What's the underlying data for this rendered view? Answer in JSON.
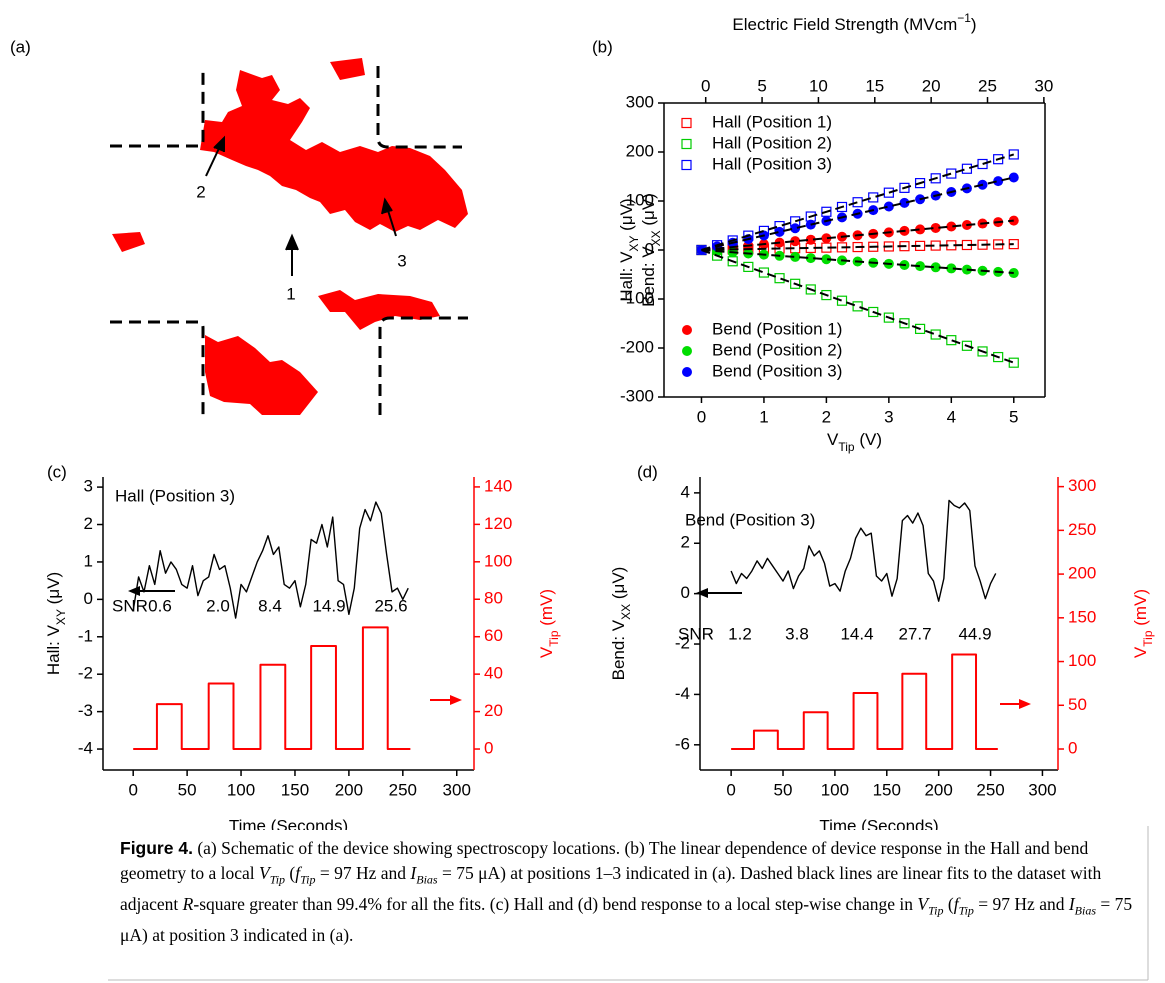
{
  "schematic": {
    "panel_label": "(a)",
    "labels": [
      "1",
      "2",
      "3"
    ]
  },
  "chart_data": [
    {
      "type": "scatter",
      "panel_label": "(b)",
      "x": [
        0,
        0.25,
        0.5,
        0.75,
        1,
        1.25,
        1.5,
        1.75,
        2,
        2.25,
        2.5,
        2.75,
        3,
        3.25,
        3.5,
        3.75,
        4,
        4.25,
        4.5,
        4.75,
        5
      ],
      "xlim": [
        -0.6,
        5.5
      ],
      "xticks": [
        0,
        1,
        2,
        3,
        4,
        5
      ],
      "x2lim": [
        -3.7,
        30.1
      ],
      "x2ticks": [
        0,
        5,
        10,
        15,
        20,
        25,
        30
      ],
      "ylim": [
        -300,
        300
      ],
      "yticks": [
        -300,
        -200,
        -100,
        0,
        100,
        200,
        300
      ],
      "xlabel": [
        "V",
        "Tip",
        " (V)"
      ],
      "x2label": [
        "Electric Field Strength (MVcm",
        "−1",
        ")"
      ],
      "ylabel": [
        [
          "Hall: V",
          "XY",
          " (μV)"
        ],
        [
          "Bend: V",
          "XX",
          " (μV)"
        ]
      ],
      "fit_lines": true,
      "series": [
        {
          "name": "Hall (Position 1)",
          "color": "#ff0000",
          "marker": "square",
          "values": [
            0,
            0.6,
            1.2,
            1.8,
            2.4,
            3,
            3.6,
            4.2,
            4.8,
            5.4,
            6,
            6.6,
            7.2,
            7.8,
            8.4,
            9,
            9.6,
            10.2,
            10.8,
            11.4,
            12
          ]
        },
        {
          "name": "Hall (Position 2)",
          "color": "#00cc00",
          "marker": "square",
          "values": [
            0,
            -11.5,
            -23,
            -34.5,
            -46,
            -57.5,
            -69,
            -80.5,
            -92,
            -103.5,
            -115,
            -126.5,
            -138,
            -149.5,
            -161,
            -172.5,
            -184,
            -195.5,
            -207,
            -218.5,
            -230
          ]
        },
        {
          "name": "Hall (Position 3)",
          "color": "#0000ff",
          "marker": "square",
          "values": [
            0,
            9.8,
            19.5,
            29.3,
            39,
            48.8,
            58.5,
            68.3,
            78,
            87.8,
            97.5,
            107.3,
            117,
            126.8,
            136.5,
            146.3,
            156,
            165.8,
            175.5,
            185.3,
            195
          ]
        },
        {
          "name": "Bend (Position 1)",
          "color": "#ff0000",
          "marker": "circle",
          "values": [
            0,
            3,
            6,
            9,
            12,
            15,
            18,
            21,
            24,
            27,
            30,
            33,
            36,
            39,
            42,
            45,
            48,
            51,
            54,
            57,
            60
          ]
        },
        {
          "name": "Bend (Position 2)",
          "color": "#00dd00",
          "marker": "circle",
          "values": [
            0,
            -2.4,
            -4.7,
            -7.1,
            -9.4,
            -11.8,
            -14.1,
            -16.5,
            -18.8,
            -21.2,
            -23.5,
            -25.9,
            -28.2,
            -30.6,
            -32.9,
            -35.3,
            -37.6,
            -40,
            -42.3,
            -44.7,
            -47
          ]
        },
        {
          "name": "Bend (Position 3)",
          "color": "#0000ff",
          "marker": "circle",
          "values": [
            0,
            7.4,
            14.8,
            22.2,
            29.6,
            37,
            44.4,
            51.8,
            59.2,
            66.6,
            74,
            81.4,
            88.8,
            96.2,
            103.6,
            111,
            118.4,
            125.8,
            133.2,
            140.6,
            148
          ]
        }
      ]
    },
    {
      "type": "line",
      "panel_label": "(c)",
      "title": "Hall (Position 3)",
      "x": [
        0,
        5,
        10,
        15,
        20,
        25,
        30,
        35,
        40,
        45,
        50,
        55,
        60,
        65,
        70,
        75,
        80,
        85,
        90,
        95,
        100,
        105,
        110,
        115,
        120,
        125,
        130,
        135,
        140,
        145,
        150,
        155,
        160,
        165,
        170,
        175,
        180,
        185,
        190,
        195,
        200,
        205,
        210,
        215,
        220,
        225,
        230,
        235,
        240,
        245,
        250,
        255
      ],
      "xlim": [
        -28,
        316
      ],
      "xticks": [
        0,
        50,
        100,
        150,
        200,
        250,
        300
      ],
      "ylim": [
        -4.56,
        3.27
      ],
      "yticks": [
        -4,
        -3,
        -2,
        -1,
        0,
        1,
        2,
        3
      ],
      "y2lim": [
        -11.2,
        145.3
      ],
      "y2ticks": [
        0,
        20,
        40,
        60,
        80,
        100,
        120,
        140
      ],
      "xlabel": "Time (Seconds)",
      "ylabel": [
        "Hall: V",
        "XY",
        " (μV)"
      ],
      "y2label": [
        "V",
        "Tip",
        " (mV)"
      ],
      "y2color": "#ff0000",
      "snr_label": "SNR",
      "snr_values": [
        "0.6",
        "2.0",
        "8.4",
        "14.9",
        "25.6"
      ],
      "series": [
        {
          "color": "#000000",
          "values": [
            -0.3,
            0.6,
            0.2,
            0.9,
            0.4,
            1.3,
            0.7,
            1.0,
            0.8,
            0.4,
            0.3,
            0.9,
            0.1,
            0.5,
            0.6,
            1.2,
            0.8,
            0.9,
            0.3,
            -0.5,
            0.4,
            0.2,
            0.6,
            1.0,
            1.3,
            1.7,
            1.2,
            1.4,
            0.4,
            0.3,
            0.5,
            -0.2,
            0.4,
            1.6,
            1.5,
            2.0,
            1.4,
            2.2,
            0.5,
            0.4,
            -0.4,
            0.3,
            1.9,
            2.4,
            2.1,
            2.6,
            2.3,
            1.2,
            0.2,
            0.3,
            0.0,
            0.3
          ]
        },
        {
          "color": "#ff0000",
          "axis": "y2",
          "x": [
            0,
            22,
            22,
            45,
            45,
            70,
            70,
            93,
            93,
            118,
            118,
            141,
            141,
            165,
            165,
            188,
            188,
            213,
            213,
            236,
            236,
            257
          ],
          "values": [
            0,
            0,
            24,
            24,
            0,
            0,
            35,
            35,
            0,
            0,
            45,
            45,
            0,
            0,
            55,
            55,
            0,
            0,
            65,
            65,
            0,
            0
          ]
        }
      ]
    },
    {
      "type": "line",
      "panel_label": "(d)",
      "title": "Bend (Position 3)",
      "x": [
        0,
        5,
        10,
        15,
        20,
        25,
        30,
        35,
        40,
        45,
        50,
        55,
        60,
        65,
        70,
        75,
        80,
        85,
        90,
        95,
        100,
        105,
        110,
        115,
        120,
        125,
        130,
        135,
        140,
        145,
        150,
        155,
        160,
        165,
        170,
        175,
        180,
        185,
        190,
        195,
        200,
        205,
        210,
        215,
        220,
        225,
        230,
        235,
        240,
        245,
        250,
        255
      ],
      "xlim": [
        -30,
        315
      ],
      "xticks": [
        0,
        50,
        100,
        150,
        200,
        250,
        300
      ],
      "ylim": [
        -7,
        4.63
      ],
      "yticks": [
        -6,
        -4,
        -2,
        0,
        2,
        4
      ],
      "y2lim": [
        -24,
        311
      ],
      "y2ticks": [
        0,
        50,
        100,
        150,
        200,
        250,
        300
      ],
      "xlabel": "Time (Seconds)",
      "ylabel": [
        "Bend: V",
        "XX",
        " (μV)"
      ],
      "y2label": [
        "V",
        "Tip",
        " (mV)"
      ],
      "y2color": "#ff0000",
      "snr_label": "SNR",
      "snr_values": [
        "1.2",
        "3.8",
        "14.4",
        "27.7",
        "44.9"
      ],
      "series": [
        {
          "color": "#000000",
          "values": [
            0.9,
            0.4,
            0.8,
            0.6,
            0.9,
            1.3,
            1.0,
            1.4,
            1.1,
            0.8,
            0.5,
            0.9,
            0.2,
            0.7,
            1.0,
            1.9,
            1.5,
            1.7,
            1.2,
            0.3,
            0.4,
            0.1,
            0.9,
            1.4,
            2.2,
            2.6,
            2.3,
            2.4,
            0.7,
            0.5,
            0.8,
            -0.1,
            0.6,
            2.9,
            3.1,
            2.8,
            3.2,
            2.7,
            0.8,
            0.5,
            -0.3,
            0.6,
            3.7,
            3.5,
            3.4,
            3.6,
            3.3,
            1.1,
            0.5,
            -0.2,
            0.4,
            0.8
          ]
        },
        {
          "color": "#ff0000",
          "axis": "y2",
          "x": [
            0,
            22,
            22,
            45,
            45,
            70,
            70,
            93,
            93,
            118,
            118,
            141,
            141,
            165,
            165,
            188,
            188,
            213,
            213,
            236,
            236,
            257
          ],
          "values": [
            0,
            0,
            21,
            21,
            0,
            0,
            42,
            42,
            0,
            0,
            64,
            64,
            0,
            0,
            86,
            86,
            0,
            0,
            108,
            108,
            0,
            0
          ]
        }
      ]
    }
  ],
  "caption": [
    "Figure 4.",
    " (a) Schematic of the device showing spectroscopy locations. (b) The linear dependence of device response in the Hall and bend geometry to a local ",
    "V",
    "Tip",
    " (",
    "f",
    "Tip",
    " = 97 Hz and ",
    "I",
    "Bias",
    " = 75 μA) at positions 1–3 indicated in (a). Dashed black lines are linear fits to the dataset with adjacent ",
    "R",
    "-square greater than 99.4% for all the fits. (c) Hall and (d) bend response to a local step-wise change in ",
    "V",
    "Tip",
    " (",
    "f",
    "Tip",
    " = 97 Hz and ",
    "I",
    "Bias",
    " = 75 μA) at position 3 indicated in (a)."
  ]
}
